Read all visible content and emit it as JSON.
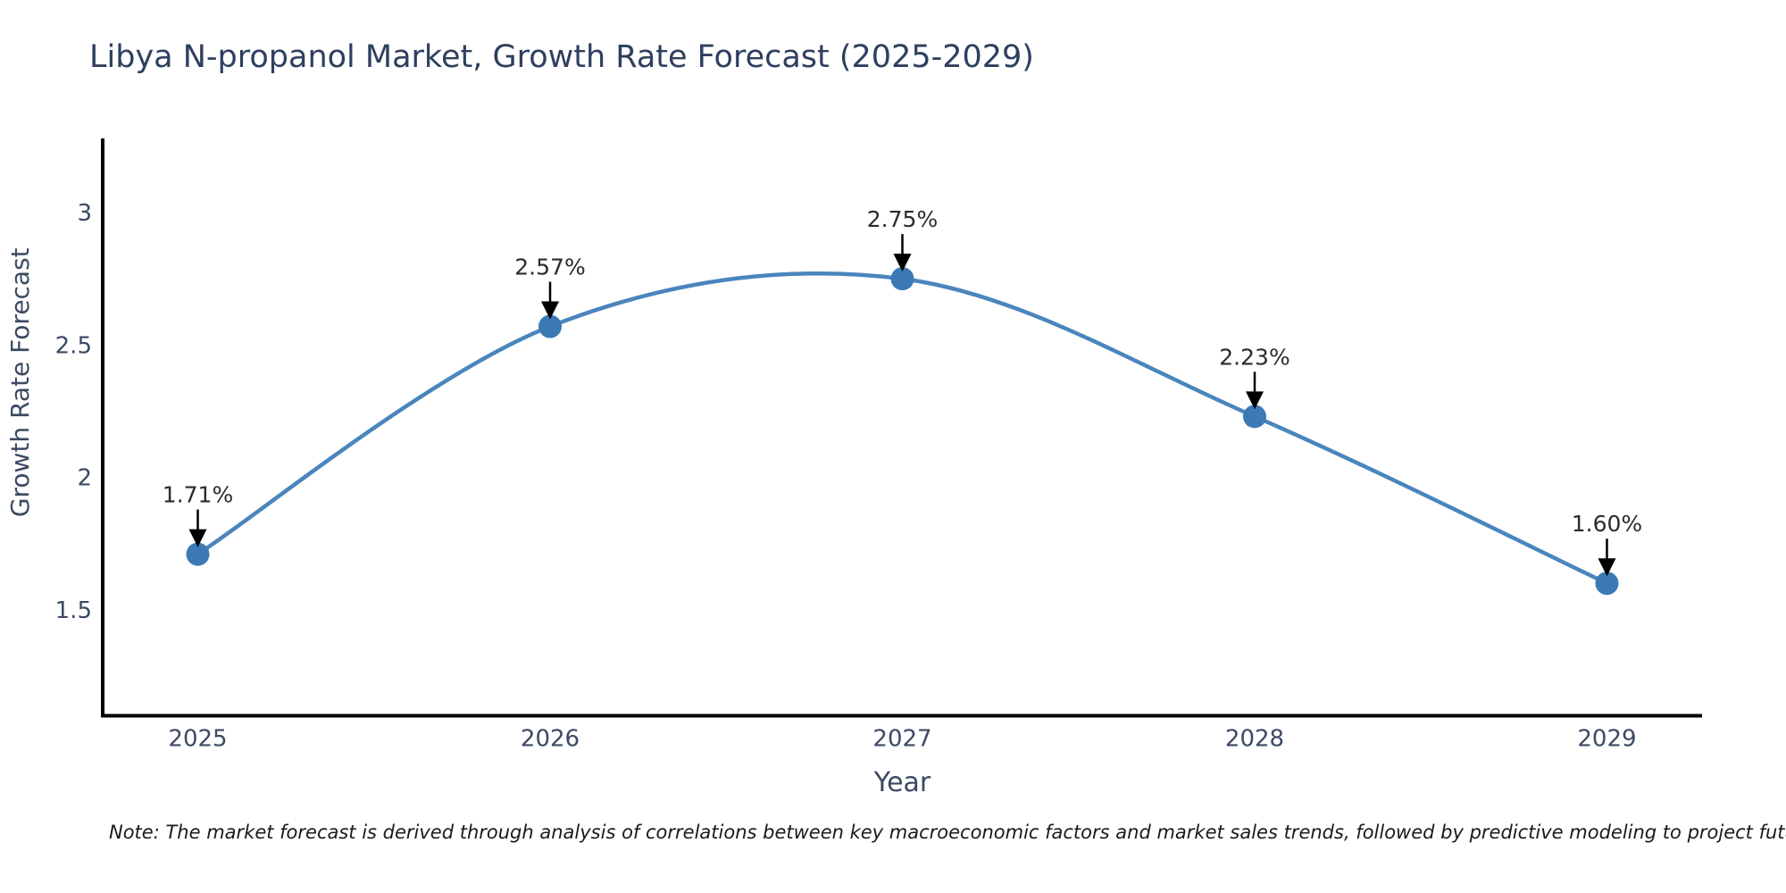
{
  "header": {
    "title": "Libya N-propanol Market, Growth Rate Forecast (2025-2029)"
  },
  "footer": {
    "note": "Note: The market forecast is derived through analysis of correlations between key macroeconomic factors and market sales trends, followed by predictive modeling to project future sales"
  },
  "chart_data": {
    "type": "line",
    "title": "Libya N-propanol Market, Growth Rate Forecast (2025-2029)",
    "x": [
      2025,
      2026,
      2027,
      2028,
      2029
    ],
    "xtick_labels": [
      "2025",
      "2026",
      "2027",
      "2028",
      "2029"
    ],
    "series": [
      {
        "name": "Growth Rate Forecast",
        "values": [
          1.71,
          2.57,
          2.75,
          2.23,
          1.6
        ],
        "point_labels": [
          "1.71%",
          "2.57%",
          "2.75%",
          "2.23%",
          "1.60%"
        ]
      }
    ],
    "xlabel": "Year",
    "ylabel": "Growth Rate Forecast",
    "yticks": [
      1.5,
      2,
      2.5,
      3
    ],
    "ytick_labels": [
      "1.5",
      "2",
      "2.5",
      "3"
    ],
    "xlim": [
      2024.73,
      2029.27
    ],
    "ylim": [
      1.1,
      3.28
    ],
    "grid": false,
    "legend_position": "none",
    "smooth": true,
    "colors": {
      "line": "#4a85bd",
      "marker": "#3c7ab6",
      "annotation_text": "#2b2b2b",
      "annotation_arrow": "#000000",
      "axis_spine": "#000000",
      "tick_text": "#3b4a63",
      "axis_title_text": "#3b4a63",
      "title_text": "#2e3f5f",
      "background": "#ffffff"
    }
  }
}
